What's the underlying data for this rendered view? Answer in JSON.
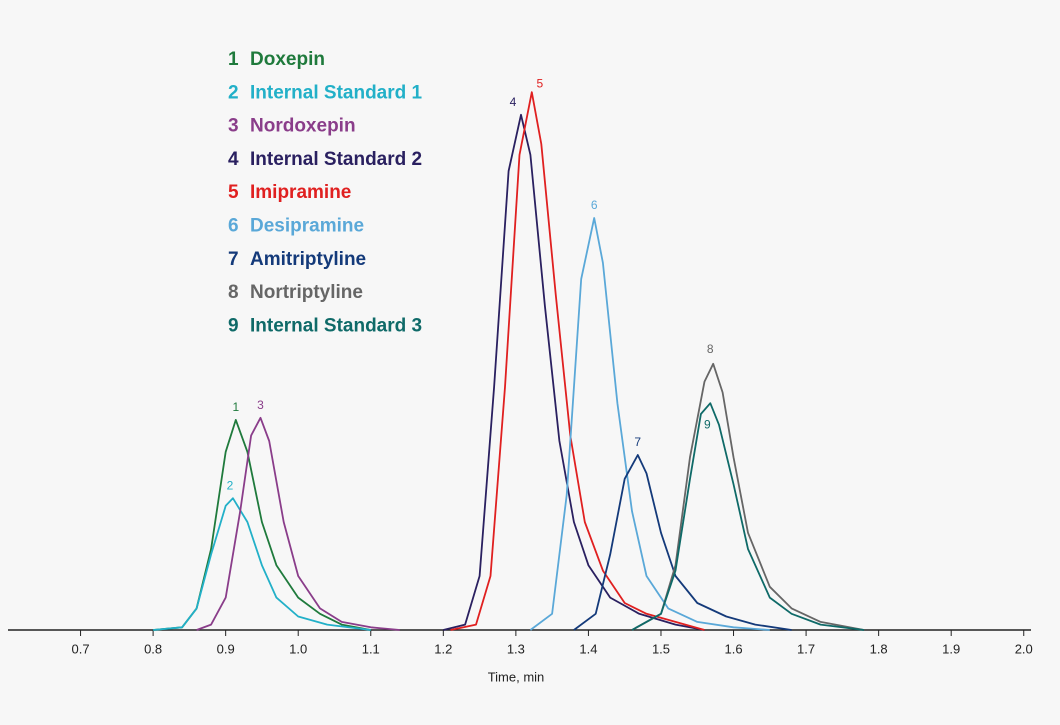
{
  "chart_data": {
    "type": "line",
    "x_label": "Time, min",
    "xlim": [
      0.6,
      2.01
    ],
    "xticks": [
      0.7,
      0.8,
      0.9,
      {
        "value": 1,
        "label": "1.0"
      },
      1.1,
      1.2,
      1.3,
      1.4,
      1.5,
      1.6,
      1.7,
      1.8,
      1.9,
      {
        "value": 2,
        "label": "2.0"
      }
    ],
    "ylim": [
      0,
      105
    ],
    "series": [
      {
        "label": "1",
        "name": "Doxepin",
        "color": "#1f7a3c",
        "x": [
          0.8,
          0.84,
          0.86,
          0.88,
          0.9,
          0.914,
          0.93,
          0.95,
          0.97,
          1.0,
          1.03,
          1.06,
          1.1
        ],
        "values": [
          0,
          0.5,
          4,
          15,
          33,
          38.9,
          33,
          20,
          12,
          6,
          3,
          1,
          0
        ]
      },
      {
        "label": "2",
        "name": "Internal Standard 1",
        "color": "#22b0c8",
        "x": [
          0.8,
          0.84,
          0.86,
          0.88,
          0.9,
          0.91,
          0.93,
          0.95,
          0.97,
          1.0,
          1.04,
          1.1
        ],
        "values": [
          0,
          0.5,
          4,
          14,
          23,
          24.4,
          20,
          12,
          6,
          2.5,
          1,
          0
        ]
      },
      {
        "label": "3",
        "name": "Nordoxepin",
        "color": "#8a3d8a",
        "x": [
          0.86,
          0.88,
          0.9,
          0.92,
          0.935,
          0.948,
          0.96,
          0.98,
          1.0,
          1.03,
          1.06,
          1.1,
          1.14
        ],
        "values": [
          0,
          1,
          6,
          22,
          36,
          39.3,
          35,
          20,
          10,
          4,
          1.5,
          0.5,
          0
        ]
      },
      {
        "label": "4",
        "name": "Internal Standard 2",
        "color": "#2a2060",
        "x": [
          1.2,
          1.23,
          1.25,
          1.27,
          1.29,
          1.307,
          1.32,
          1.34,
          1.36,
          1.38,
          1.4,
          1.43,
          1.47,
          1.52,
          1.56
        ],
        "values": [
          0,
          1,
          10,
          45,
          85,
          95.4,
          88,
          60,
          35,
          20,
          12,
          6,
          3,
          1,
          0
        ]
      },
      {
        "label": "5",
        "name": "Imipramine",
        "color": "#e02020",
        "x": [
          1.21,
          1.245,
          1.265,
          1.285,
          1.305,
          1.322,
          1.335,
          1.355,
          1.375,
          1.395,
          1.42,
          1.45,
          1.48,
          1.52,
          1.56
        ],
        "values": [
          0,
          1,
          10,
          45,
          88,
          99.6,
          90,
          62,
          36,
          20,
          11,
          5,
          3,
          1.5,
          0
        ]
      },
      {
        "label": "6",
        "name": "Desipramine",
        "color": "#5aa8d8",
        "x": [
          1.32,
          1.35,
          1.37,
          1.39,
          1.408,
          1.42,
          1.44,
          1.46,
          1.48,
          1.51,
          1.55,
          1.6,
          1.65
        ],
        "values": [
          0,
          3,
          25,
          65,
          76.3,
          68,
          42,
          22,
          10,
          4,
          1.5,
          0.5,
          0
        ]
      },
      {
        "label": "7",
        "name": "Amitriptyline",
        "color": "#143a7a",
        "x": [
          1.38,
          1.41,
          1.43,
          1.45,
          1.468,
          1.48,
          1.5,
          1.52,
          1.55,
          1.59,
          1.63,
          1.68
        ],
        "values": [
          0,
          3,
          14,
          28,
          32.4,
          29,
          18,
          10,
          5,
          2.5,
          1,
          0
        ]
      },
      {
        "label": "8",
        "name": "Nortriptyline",
        "color": "#666666",
        "x": [
          1.46,
          1.5,
          1.52,
          1.54,
          1.56,
          1.572,
          1.585,
          1.6,
          1.62,
          1.65,
          1.68,
          1.72,
          1.78
        ],
        "values": [
          0,
          3,
          12,
          32,
          46,
          49.3,
          44,
          32,
          18,
          8,
          4,
          1.5,
          0
        ]
      },
      {
        "label": "9",
        "name": "Internal Standard 3",
        "color": "#0f6a68",
        "x": [
          1.46,
          1.5,
          1.52,
          1.54,
          1.555,
          1.568,
          1.58,
          1.6,
          1.62,
          1.65,
          1.68,
          1.72,
          1.78
        ],
        "values": [
          0,
          3,
          11,
          28,
          40,
          42,
          38,
          27,
          15,
          6,
          3,
          1,
          0
        ]
      }
    ]
  }
}
